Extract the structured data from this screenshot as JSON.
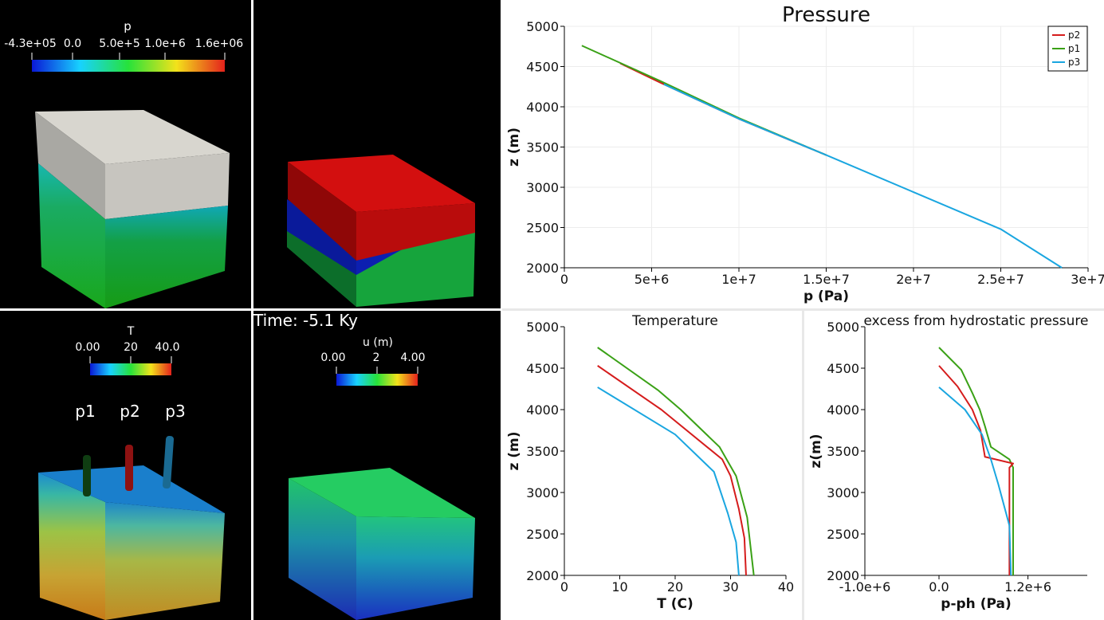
{
  "view_tl": {
    "colorbar": {
      "title": "p",
      "ticks": [
        "-4.3e+05",
        "0.0",
        "5.0e+5",
        "1.0e+6",
        "1.6e+06"
      ]
    }
  },
  "view_bl": {
    "colorbar": {
      "title": "T",
      "ticks": [
        "0.00",
        "20",
        "40.0"
      ]
    },
    "well_labels": [
      "p1",
      "p2",
      "p3"
    ]
  },
  "view_bm": {
    "time_text": "Time: -5.1 Ky",
    "colorbar": {
      "title": "u (m)",
      "ticks": [
        "0.00",
        "2",
        "4.00"
      ]
    }
  },
  "colors": {
    "p1": "#3aa116",
    "p2": "#d51c1c",
    "p3": "#1aa6e0",
    "background": "#000000"
  },
  "chart_data": [
    {
      "type": "line",
      "title": "Pressure",
      "xlabel": "p (Pa)",
      "ylabel": "z (m)",
      "xlim": [
        0,
        30000000
      ],
      "ylim": [
        2000,
        5000
      ],
      "xticks": [
        0,
        5000000,
        10000000,
        15000000,
        20000000,
        25000000,
        30000000
      ],
      "xtick_labels": [
        "0",
        "5e+6",
        "1e+7",
        "1.5e+7",
        "2e+7",
        "2.5e+7",
        "3e+7"
      ],
      "yticks": [
        2000,
        2500,
        3000,
        3500,
        4000,
        4500,
        5000
      ],
      "ytick_labels": [
        "2000",
        "2500",
        "3000",
        "3500",
        "4000",
        "4500",
        "5000"
      ],
      "grid": true,
      "legend": "top-right",
      "series": [
        {
          "name": "p2",
          "color": "#d51c1c",
          "x": [
            3200000,
            5500000,
            10000000,
            15000000
          ],
          "y": [
            4540,
            4300,
            3850,
            3400
          ]
        },
        {
          "name": "p1",
          "color": "#3aa116",
          "x": [
            1000000,
            5500000,
            10000000,
            15000000
          ],
          "y": [
            4760,
            4320,
            3860,
            3400
          ]
        },
        {
          "name": "p3",
          "color": "#1aa6e0",
          "x": [
            5700000,
            10000000,
            15000000,
            20000000,
            25000000,
            28500000
          ],
          "y": [
            4280,
            3850,
            3400,
            2940,
            2480,
            2000
          ]
        }
      ]
    },
    {
      "type": "line",
      "title": "Temperature",
      "xlabel": "T (C)",
      "ylabel": "z (m)",
      "xlim": [
        0,
        40
      ],
      "ylim": [
        2000,
        5000
      ],
      "xticks": [
        0,
        10,
        20,
        30,
        40
      ],
      "xtick_labels": [
        "0",
        "10",
        "20",
        "30",
        "40"
      ],
      "yticks": [
        2000,
        2500,
        3000,
        3500,
        4000,
        4500,
        5000
      ],
      "ytick_labels": [
        "2000",
        "2500",
        "3000",
        "3500",
        "4000",
        "4500",
        "5000"
      ],
      "grid": false,
      "series": [
        {
          "name": "p1",
          "color": "#3aa116",
          "x": [
            6,
            17,
            21,
            28,
            31,
            33,
            34.2
          ],
          "y": [
            4750,
            4230,
            4000,
            3550,
            3200,
            2700,
            2000
          ]
        },
        {
          "name": "p2",
          "color": "#d51c1c",
          "x": [
            6,
            17.5,
            28.5,
            30,
            31.5,
            32.5,
            32.8
          ],
          "y": [
            4530,
            4000,
            3400,
            3200,
            2800,
            2450,
            2000
          ]
        },
        {
          "name": "p3",
          "color": "#1aa6e0",
          "x": [
            6,
            20,
            27,
            29.5,
            31,
            31.5
          ],
          "y": [
            4270,
            3700,
            3250,
            2750,
            2400,
            2000
          ]
        }
      ]
    },
    {
      "type": "line",
      "title": "excess from hydrostatic pressure",
      "xlabel": "p-ph (Pa)",
      "ylabel": "z(m)",
      "xlim": [
        -1000000,
        2000000
      ],
      "ylim": [
        2000,
        5000
      ],
      "xticks": [
        -1000000,
        0,
        1200000
      ],
      "xtick_labels": [
        "-1.0e+6",
        "0.0",
        "1.2e+6"
      ],
      "yticks": [
        2000,
        2500,
        3000,
        3500,
        4000,
        4500,
        5000
      ],
      "ytick_labels": [
        "2000",
        "2500",
        "3000",
        "3500",
        "4000",
        "4500",
        "5000"
      ],
      "grid": false,
      "series": [
        {
          "name": "p1",
          "color": "#3aa116",
          "x": [
            0,
            300000,
            450000,
            550000,
            620000,
            700000,
            950000,
            1000000,
            1000000
          ],
          "y": [
            4750,
            4480,
            4200,
            4000,
            3800,
            3550,
            3400,
            3300,
            2000
          ]
        },
        {
          "name": "p2",
          "color": "#d51c1c",
          "x": [
            0,
            250000,
            450000,
            560000,
            620000,
            1000000,
            950000,
            950000
          ],
          "y": [
            4530,
            4280,
            4000,
            3750,
            3430,
            3350,
            3300,
            2000
          ]
        },
        {
          "name": "p3",
          "color": "#1aa6e0",
          "x": [
            0,
            350000,
            580000,
            700000,
            800000,
            950000,
            970000
          ],
          "y": [
            4270,
            4000,
            3700,
            3400,
            3100,
            2600,
            2000
          ]
        }
      ]
    }
  ]
}
